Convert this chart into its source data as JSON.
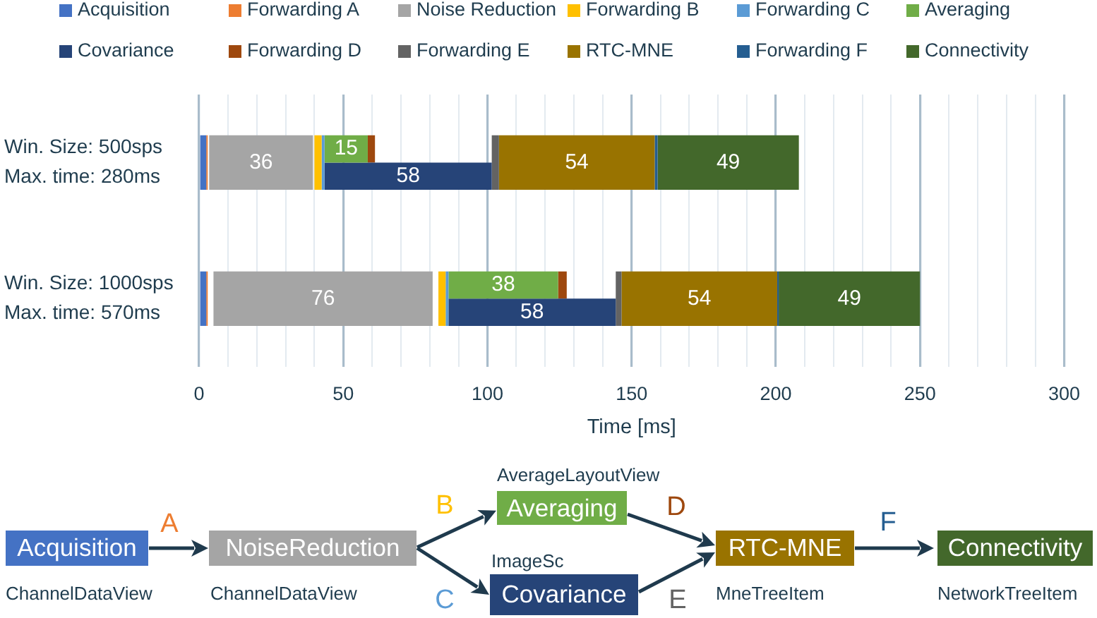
{
  "chart_data": [
    {
      "type": "bar",
      "orientation": "horizontal",
      "legend": "top",
      "grid": "x",
      "xlabel": "Time [ms]",
      "categories": [
        "Win. Size: 500sps\nMax. time: 280ms",
        "Win. Size: 1000sps\nMax. time: 570ms"
      ],
      "xlim": [
        0,
        300
      ],
      "xticks": [
        0,
        {
          "value": 10,
          "label": null
        },
        {
          "value": 20,
          "label": null
        },
        {
          "value": 30,
          "label": null
        },
        {
          "value": 40,
          "label": null
        },
        50,
        {
          "value": 60,
          "label": null
        },
        {
          "value": 70,
          "label": null
        },
        {
          "value": 80,
          "label": null
        },
        {
          "value": 90,
          "label": null
        },
        100,
        {
          "value": 110,
          "label": null
        },
        {
          "value": 120,
          "label": null
        },
        {
          "value": 130,
          "label": null
        },
        {
          "value": 140,
          "label": null
        },
        150,
        {
          "value": 160,
          "label": null
        },
        {
          "value": 170,
          "label": null
        },
        {
          "value": 180,
          "label": null
        },
        {
          "value": 190,
          "label": null
        },
        200,
        {
          "value": 210,
          "label": null
        },
        {
          "value": 220,
          "label": null
        },
        {
          "value": 230,
          "label": null
        },
        {
          "value": 240,
          "label": null
        },
        250,
        {
          "value": 260,
          "label": null
        },
        {
          "value": 270,
          "label": null
        },
        {
          "value": 280,
          "label": null
        },
        {
          "value": 290,
          "label": null
        },
        300
      ],
      "series": [
        {
          "name": "Acquisition",
          "color": "#4472c4",
          "base": [
            0,
            0
          ],
          "values": [
            2.5,
            2.5
          ]
        },
        {
          "name": "Forwarding A",
          "color": "#ed7d31",
          "base": [
            2.5,
            2.5
          ],
          "values": [
            0.5,
            0.5
          ]
        },
        {
          "name": "Noise Reduction",
          "color": "#a5a5a5",
          "base": [
            3.5,
            5
          ],
          "values": [
            36,
            76
          ],
          "value_labels": [
            "36",
            "76"
          ]
        },
        {
          "name": "Forwarding B",
          "color": "#ffc000",
          "base": [
            40,
            83
          ],
          "values": [
            2.5,
            2.5
          ]
        },
        {
          "name": "Forwarding C",
          "color": "#5b9bd5",
          "base": [
            42.5,
            85.5
          ],
          "values": [
            1,
            1
          ]
        },
        {
          "name": "Averaging",
          "color": "#70ad47",
          "base": [
            43.5,
            86.5
          ],
          "values": [
            15,
            38
          ],
          "value_labels": [
            "15",
            "38"
          ]
        },
        {
          "name": "Covariance",
          "color": "#264478",
          "base": [
            43.5,
            86.5
          ],
          "values": [
            58,
            58
          ],
          "value_labels": [
            "58",
            "58"
          ]
        },
        {
          "name": "Forwarding D",
          "color": "#9e480e",
          "base": [
            58.5,
            124.5
          ],
          "values": [
            2.5,
            3
          ]
        },
        {
          "name": "Forwarding E",
          "color": "#636363",
          "base": [
            101.5,
            144.5
          ],
          "values": [
            2.5,
            2
          ]
        },
        {
          "name": "RTC-MNE",
          "color": "#997300",
          "base": [
            104,
            146.5
          ],
          "values": [
            54,
            54
          ],
          "value_labels": [
            "54",
            "54"
          ]
        },
        {
          "name": "Forwarding F",
          "color": "#255e91",
          "base": [
            158,
            200.5
          ],
          "values": [
            1,
            0.5
          ]
        },
        {
          "name": "Connectivity",
          "color": "#43682b",
          "base": [
            159,
            201
          ],
          "values": [
            49,
            49
          ],
          "value_labels": [
            "49",
            "49"
          ]
        }
      ]
    },
    {
      "type": "other",
      "annotations": [
        "Acquisition",
        "ChannelDataView",
        "A",
        "NoiseReduction",
        "ChannelDataView",
        "B",
        "C",
        "AverageLayoutView",
        "Averaging",
        "ImageSc",
        "Covariance",
        "D",
        "E",
        "RTC-MNE",
        "MneTreeItem",
        "F",
        "Connectivity",
        "NetworkTreeItem"
      ]
    }
  ]
}
